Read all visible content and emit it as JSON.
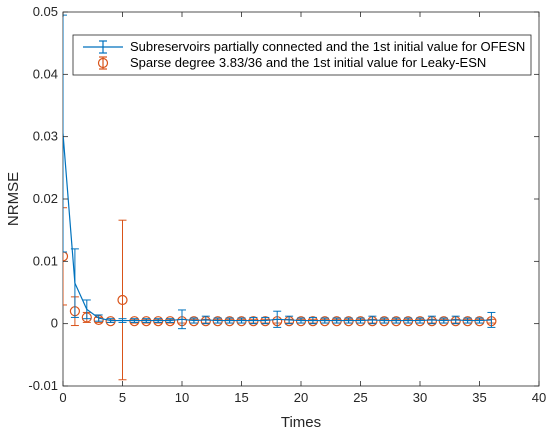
{
  "chart_data": {
    "type": "line",
    "xlabel": "Times",
    "ylabel": "NRMSE",
    "xlim": [
      0,
      40
    ],
    "ylim": [
      -0.01,
      0.05
    ],
    "x_ticks": [
      "0",
      "5",
      "10",
      "15",
      "20",
      "25",
      "30",
      "35",
      "40"
    ],
    "y_ticks": [
      "-0.01",
      "0",
      "0.01",
      "0.02",
      "0.03",
      "0.04",
      "0.05"
    ],
    "grid": false,
    "legend_position": "top-right",
    "series": [
      {
        "name": "Subreservoirs partially connected and the 1st initial value for OFESN",
        "color": "#0072BD",
        "marker": "none",
        "x": [
          0,
          1,
          2,
          3,
          4,
          5,
          6,
          7,
          8,
          9,
          10,
          11,
          12,
          13,
          14,
          15,
          16,
          17,
          18,
          19,
          20,
          21,
          22,
          23,
          24,
          25,
          26,
          27,
          28,
          29,
          30,
          31,
          32,
          33,
          34,
          35,
          36
        ],
        "y": [
          0.0305,
          0.0065,
          0.0023,
          0.0009,
          0.0005,
          0.0005,
          0.0005,
          0.0005,
          0.0005,
          0.0005,
          0.0007,
          0.0005,
          0.0006,
          0.0005,
          0.0005,
          0.0005,
          0.0005,
          0.0005,
          0.0007,
          0.0006,
          0.0005,
          0.0005,
          0.0005,
          0.0005,
          0.0005,
          0.0005,
          0.0006,
          0.0005,
          0.0005,
          0.0005,
          0.0005,
          0.0006,
          0.0005,
          0.0006,
          0.0005,
          0.0005,
          0.0006
        ],
        "err": [
          0.019,
          0.0055,
          0.0015,
          0.0005,
          0.0003,
          0.0003,
          0.0003,
          0.0003,
          0.0003,
          0.0003,
          0.0015,
          0.0004,
          0.0006,
          0.0004,
          0.0004,
          0.0004,
          0.0005,
          0.0005,
          0.0013,
          0.0006,
          0.0004,
          0.0005,
          0.0004,
          0.0004,
          0.0004,
          0.0004,
          0.0006,
          0.0004,
          0.0004,
          0.0004,
          0.0004,
          0.0006,
          0.0004,
          0.0006,
          0.0004,
          0.0004,
          0.0012
        ]
      },
      {
        "name": "Sparse degree 3.83/36 and  the 1st initial value for Leaky-ESN",
        "color": "#D95319",
        "marker": "circle",
        "x": [
          0,
          1,
          2,
          3,
          4,
          5,
          6,
          7,
          8,
          9,
          10,
          11,
          12,
          13,
          14,
          15,
          16,
          17,
          18,
          19,
          20,
          21,
          22,
          23,
          24,
          25,
          26,
          27,
          28,
          29,
          30,
          31,
          32,
          33,
          34,
          35,
          36
        ],
        "y": [
          0.0108,
          0.002,
          0.001,
          0.0006,
          0.0004,
          0.0038,
          0.0004,
          0.0004,
          0.0004,
          0.0004,
          0.0004,
          0.0004,
          0.0004,
          0.0004,
          0.0004,
          0.0004,
          0.0004,
          0.0004,
          0.0004,
          0.0004,
          0.0004,
          0.0004,
          0.0004,
          0.0004,
          0.0004,
          0.0004,
          0.0004,
          0.0004,
          0.0004,
          0.0004,
          0.0004,
          0.0004,
          0.0004,
          0.0004,
          0.0004,
          0.0004,
          0.0004
        ],
        "err": [
          0.0078,
          0.0023,
          0.0008,
          0.0004,
          0.0002,
          0.0128,
          0.0003,
          0.0003,
          0.0003,
          0.0003,
          0.0003,
          0.0003,
          0.0003,
          0.0003,
          0.0003,
          0.0003,
          0.0003,
          0.0003,
          0.0003,
          0.0003,
          0.0003,
          0.0003,
          0.0003,
          0.0003,
          0.0003,
          0.0003,
          0.0003,
          0.0003,
          0.0003,
          0.0003,
          0.0003,
          0.0003,
          0.0003,
          0.0003,
          0.0003,
          0.0003,
          0.0003
        ]
      }
    ]
  }
}
